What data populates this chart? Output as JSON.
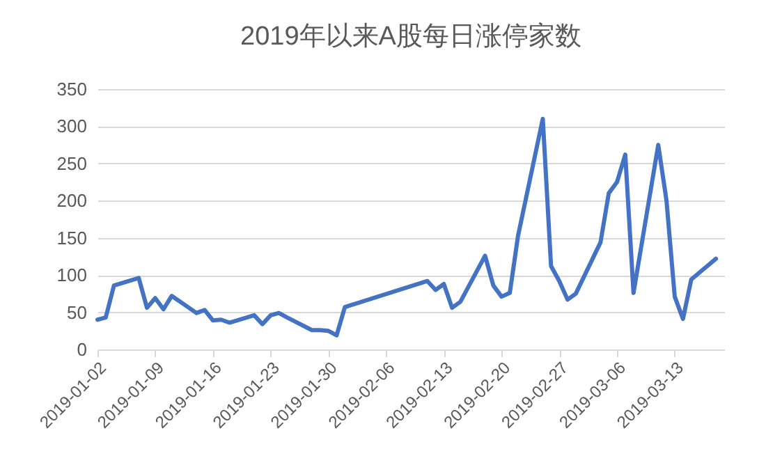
{
  "chart_data": {
    "type": "line",
    "title": "2019年以来A股每日涨停家数",
    "x": [
      "2019-01-02",
      "2019-01-03",
      "2019-01-04",
      "2019-01-07",
      "2019-01-08",
      "2019-01-09",
      "2019-01-10",
      "2019-01-11",
      "2019-01-14",
      "2019-01-15",
      "2019-01-16",
      "2019-01-17",
      "2019-01-18",
      "2019-01-21",
      "2019-01-22",
      "2019-01-23",
      "2019-01-24",
      "2019-01-25",
      "2019-01-28",
      "2019-01-29",
      "2019-01-30",
      "2019-01-31",
      "2019-02-01",
      "2019-02-11",
      "2019-02-12",
      "2019-02-13",
      "2019-02-14",
      "2019-02-15",
      "2019-02-18",
      "2019-02-19",
      "2019-02-20",
      "2019-02-21",
      "2019-02-22",
      "2019-02-25",
      "2019-02-26",
      "2019-02-27",
      "2019-02-28",
      "2019-03-01",
      "2019-03-04",
      "2019-03-05",
      "2019-03-06",
      "2019-03-07",
      "2019-03-08",
      "2019-03-11",
      "2019-03-12",
      "2019-03-13",
      "2019-03-14",
      "2019-03-15",
      "2019-03-18"
    ],
    "series": [
      {
        "color": "#4472c4",
        "values": [
          40,
          43,
          86,
          96,
          56,
          69,
          54,
          72,
          49,
          53,
          39,
          40,
          36,
          46,
          34,
          46,
          49,
          43,
          26,
          26,
          25,
          19,
          57,
          92,
          80,
          88,
          56,
          64,
          126,
          86,
          71,
          76,
          153,
          310,
          112,
          92,
          67,
          75,
          144,
          210,
          225,
          262,
          76,
          275,
          200,
          71,
          41,
          94,
          122
        ]
      }
    ],
    "xlim": [
      "2019-01-02",
      "2019-03-19"
    ],
    "xticks": [
      "2019-01-02",
      "2019-01-09",
      "2019-01-16",
      "2019-01-23",
      "2019-01-30",
      "2019-02-06",
      "2019-02-13",
      "2019-02-20",
      "2019-02-27",
      "2019-03-06",
      "2019-03-13"
    ],
    "ylim": [
      0,
      350
    ],
    "yticks": [
      0,
      50,
      100,
      150,
      200,
      250,
      300,
      350
    ],
    "grid": "y",
    "marker": "none",
    "line_style": "solid"
  }
}
